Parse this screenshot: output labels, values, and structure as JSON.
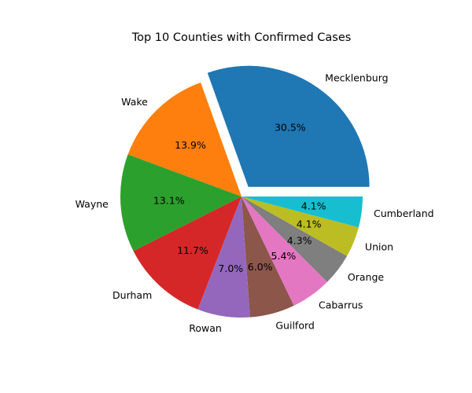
{
  "chart_data": {
    "type": "pie",
    "title": "Top 10 Counties with Confirmed Cases",
    "categories": [
      "Mecklenburg",
      "Wake",
      "Wayne",
      "Durham",
      "Rowan",
      "Guilford",
      "Cabarrus",
      "Orange",
      "Union",
      "Cumberland"
    ],
    "values": [
      30.5,
      13.9,
      13.1,
      11.7,
      7.0,
      6.0,
      5.4,
      4.3,
      4.1,
      4.1
    ],
    "percent_labels": [
      "30.5%",
      "13.9%",
      "13.1%",
      "11.7%",
      "7.0%",
      "6.0%",
      "5.4%",
      "4.3%",
      "4.1%",
      "4.1%"
    ],
    "colors": [
      "#1f77b4",
      "#ff7f0e",
      "#2ca02c",
      "#d62728",
      "#9467bd",
      "#8c564b",
      "#e377c2",
      "#7f7f7f",
      "#bcbd22",
      "#17becf"
    ],
    "exploded": [
      "Mecklenburg"
    ],
    "start_angle_deg": 0,
    "direction": "counterclockwise",
    "legend": "none"
  }
}
